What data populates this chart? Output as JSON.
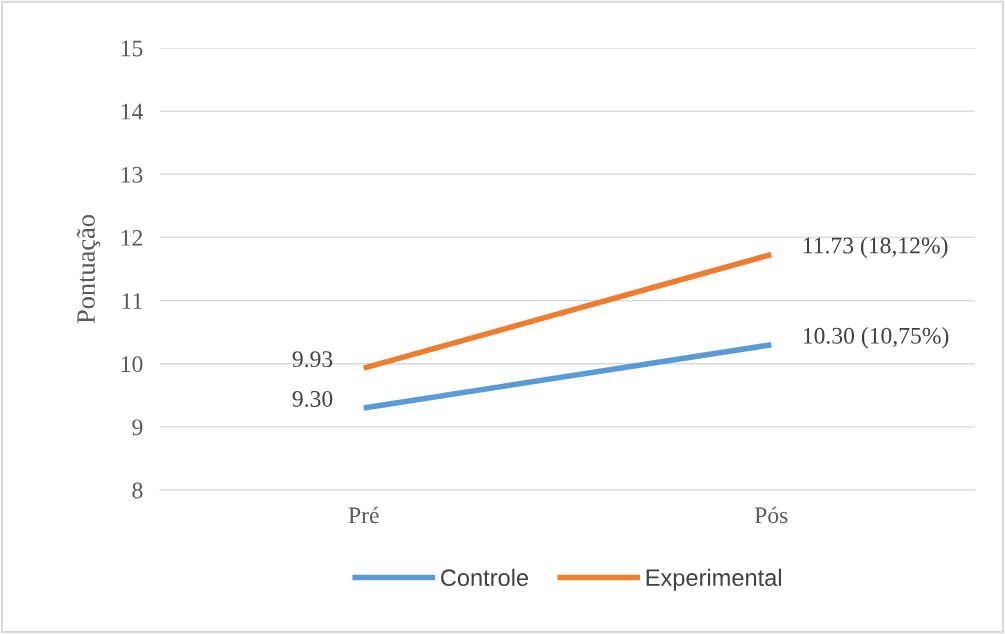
{
  "chart_data": {
    "type": "line",
    "ylabel": "Pontuação",
    "categories": [
      "Pré",
      "Pós"
    ],
    "series": [
      {
        "name": "Controle",
        "color": "#5b9bd5",
        "values": [
          9.3,
          10.3
        ],
        "value_labels": [
          "9.30",
          "10.30 (10,75%)"
        ]
      },
      {
        "name": "Experimental",
        "color": "#ed7d31",
        "values": [
          9.93,
          11.73
        ],
        "value_labels": [
          "9.93",
          "11.73 (18,12%)"
        ]
      }
    ],
    "ylim": [
      8,
      15
    ],
    "yticks": [
      8,
      9,
      10,
      11,
      12,
      13,
      14,
      15
    ],
    "grid": "y",
    "legend": "bottom",
    "marker": "none",
    "line_style": "solid"
  }
}
